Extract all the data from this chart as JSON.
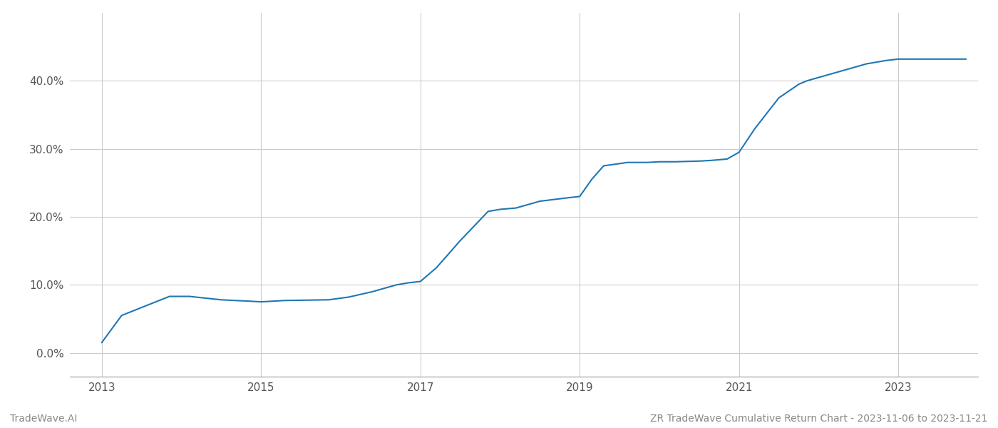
{
  "x_years": [
    2013.0,
    2013.25,
    2013.85,
    2014.1,
    2014.5,
    2014.85,
    2015.0,
    2015.3,
    2015.85,
    2016.1,
    2016.4,
    2016.7,
    2016.85,
    2017.0,
    2017.2,
    2017.5,
    2017.85,
    2018.0,
    2018.2,
    2018.5,
    2018.85,
    2019.0,
    2019.15,
    2019.3,
    2019.6,
    2019.85,
    2020.0,
    2020.2,
    2020.5,
    2020.65,
    2020.85,
    2021.0,
    2021.2,
    2021.5,
    2021.75,
    2021.85,
    2022.0,
    2022.3,
    2022.6,
    2022.85,
    2023.0,
    2023.5,
    2023.85
  ],
  "y_values": [
    1.5,
    5.5,
    8.3,
    8.3,
    7.8,
    7.6,
    7.5,
    7.7,
    7.8,
    8.2,
    9.0,
    10.0,
    10.3,
    10.5,
    12.5,
    16.5,
    20.8,
    21.1,
    21.3,
    22.3,
    22.8,
    23.0,
    25.5,
    27.5,
    28.0,
    28.0,
    28.1,
    28.1,
    28.2,
    28.3,
    28.5,
    29.5,
    33.0,
    37.5,
    39.5,
    40.0,
    40.5,
    41.5,
    42.5,
    43.0,
    43.2,
    43.2,
    43.2
  ],
  "line_color": "#1f77b4",
  "line_width": 1.5,
  "xlim": [
    2012.6,
    2024.0
  ],
  "ylim": [
    -3.5,
    50
  ],
  "yticks": [
    0.0,
    10.0,
    20.0,
    30.0,
    40.0
  ],
  "ytick_labels": [
    "0.0%",
    "10.0%",
    "20.0%",
    "30.0%",
    "40.0%"
  ],
  "xticks": [
    2013,
    2015,
    2017,
    2019,
    2021,
    2023
  ],
  "xtick_labels": [
    "2013",
    "2015",
    "2017",
    "2019",
    "2021",
    "2023"
  ],
  "footer_left": "TradeWave.AI",
  "footer_right": "ZR TradeWave Cumulative Return Chart - 2023-11-06 to 2023-11-21",
  "background_color": "#ffffff",
  "grid_color": "#cccccc",
  "tick_label_color": "#555555",
  "footer_color": "#888888",
  "spine_color": "#999999"
}
